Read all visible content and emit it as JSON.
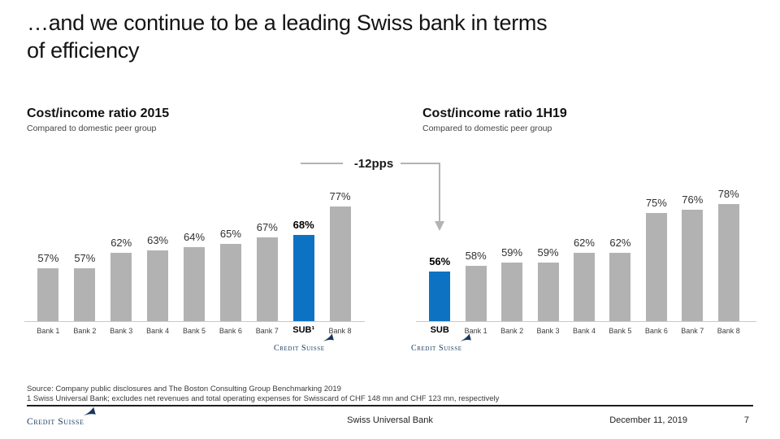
{
  "slide": {
    "title_line1": "…and we continue to be a leading Swiss bank in terms",
    "title_line2": "of efficiency"
  },
  "annotation": {
    "label": "-12pps"
  },
  "logo": {
    "text": "Credit Suisse"
  },
  "footnotes": [
    "Source: Company public disclosures and The Boston Consulting Group Benchmarking 2019",
    "1 Swiss Universal Bank; excludes net revenues and total operating expenses for Swisscard of CHF 148 mn and CHF 123 mn, respectively"
  ],
  "footer": {
    "center": "Swiss Universal Bank",
    "date": "December 11, 2019",
    "page": "7"
  },
  "colors": {
    "bar_gray": "#b2b2b2",
    "accent_blue": "#0d72c2",
    "logo_navy": "#16365c",
    "annotation_gray": "#b3b3b3"
  },
  "chart_data": [
    {
      "type": "bar",
      "title": "Cost/income ratio 2015",
      "subtitle": "Compared to domestic peer group",
      "categories": [
        "Bank 1",
        "Bank 2",
        "Bank 3",
        "Bank 4",
        "Bank 5",
        "Bank 6",
        "Bank 7",
        "SUB¹",
        "Bank 8"
      ],
      "values": [
        57,
        57,
        62,
        63,
        64,
        65,
        67,
        68,
        77
      ],
      "unit": "%",
      "highlight_index": 7,
      "bar_color": "#b2b2b2",
      "highlight_color": "#0d72c2",
      "ylim": [
        40,
        85
      ],
      "grid": false,
      "annotation": "-12pps change of SUB from 2015 to 1H19"
    },
    {
      "type": "bar",
      "title": "Cost/income ratio 1H19",
      "subtitle": "Compared to domestic peer group",
      "categories": [
        "SUB",
        "Bank 1",
        "Bank 2",
        "Bank 3",
        "Bank 4",
        "Bank 5",
        "Bank 6",
        "Bank 7",
        "Bank 8"
      ],
      "values": [
        56,
        58,
        59,
        59,
        62,
        62,
        75,
        76,
        78
      ],
      "unit": "%",
      "highlight_index": 0,
      "bar_color": "#b2b2b2",
      "highlight_color": "#0d72c2",
      "ylim": [
        40,
        85
      ],
      "grid": false
    }
  ]
}
